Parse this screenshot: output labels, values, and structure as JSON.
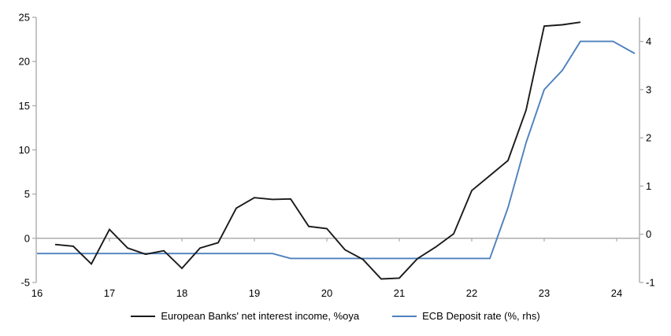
{
  "chart_data": {
    "type": "line",
    "x_axis": {
      "min": 16,
      "max": 24.32,
      "ticks": [
        16,
        17,
        18,
        19,
        20,
        21,
        22,
        23,
        24
      ],
      "tick_marks_on_zero_line": true
    },
    "left_axis": {
      "min": -5,
      "max": 25,
      "ticks": [
        25,
        20,
        15,
        10,
        5,
        0,
        -5
      ]
    },
    "right_axis": {
      "min": -1,
      "max": 4.5,
      "ticks": [
        4,
        3,
        2,
        1,
        0,
        -1
      ]
    },
    "grid": "zero-line-only",
    "legend_position": "bottom-center",
    "series": [
      {
        "name": "European Banks' net interest income, %oya",
        "axis": "left",
        "color": "#1A1A1A",
        "points": [
          [
            16.25,
            -0.7
          ],
          [
            16.5,
            -0.9
          ],
          [
            16.75,
            -2.9
          ],
          [
            17.0,
            1.0
          ],
          [
            17.25,
            -1.1
          ],
          [
            17.5,
            -1.8
          ],
          [
            17.75,
            -1.4
          ],
          [
            18.0,
            -3.4
          ],
          [
            18.25,
            -1.1
          ],
          [
            18.5,
            -0.5
          ],
          [
            18.75,
            3.4
          ],
          [
            19.0,
            4.6
          ],
          [
            19.25,
            4.4
          ],
          [
            19.5,
            4.45
          ],
          [
            19.75,
            1.35
          ],
          [
            20.0,
            1.1
          ],
          [
            20.25,
            -1.3
          ],
          [
            20.5,
            -2.4
          ],
          [
            20.75,
            -4.6
          ],
          [
            21.0,
            -4.5
          ],
          [
            21.25,
            -2.3
          ],
          [
            21.5,
            -1.0
          ],
          [
            21.75,
            0.5
          ],
          [
            22.0,
            5.4
          ],
          [
            22.25,
            7.1
          ],
          [
            22.5,
            8.8
          ],
          [
            22.75,
            14.5
          ],
          [
            23.0,
            24.0
          ],
          [
            23.25,
            24.15
          ],
          [
            23.5,
            24.45
          ]
        ]
      },
      {
        "name": "ECB Deposit rate (%, rhs)",
        "axis": "right",
        "color": "#4E81BD",
        "points": [
          [
            16.0,
            -0.4
          ],
          [
            19.25,
            -0.4
          ],
          [
            19.5,
            -0.5
          ],
          [
            22.25,
            -0.5
          ],
          [
            22.5,
            0.55
          ],
          [
            22.75,
            1.9
          ],
          [
            23.0,
            3.0
          ],
          [
            23.25,
            3.4
          ],
          [
            23.5,
            4.0
          ],
          [
            23.95,
            4.0
          ],
          [
            24.25,
            3.75
          ]
        ]
      }
    ]
  },
  "legend": {
    "items": [
      {
        "label": "European Banks' net interest income, %oya",
        "color": "#1A1A1A"
      },
      {
        "label": "ECB Deposit rate (%, rhs)",
        "color": "#4E81BD"
      }
    ]
  },
  "colors": {
    "axis_gray": "#A6A6A6",
    "background": "#FFFFFF",
    "series_black": "#1A1A1A",
    "series_blue": "#4E81BD"
  }
}
